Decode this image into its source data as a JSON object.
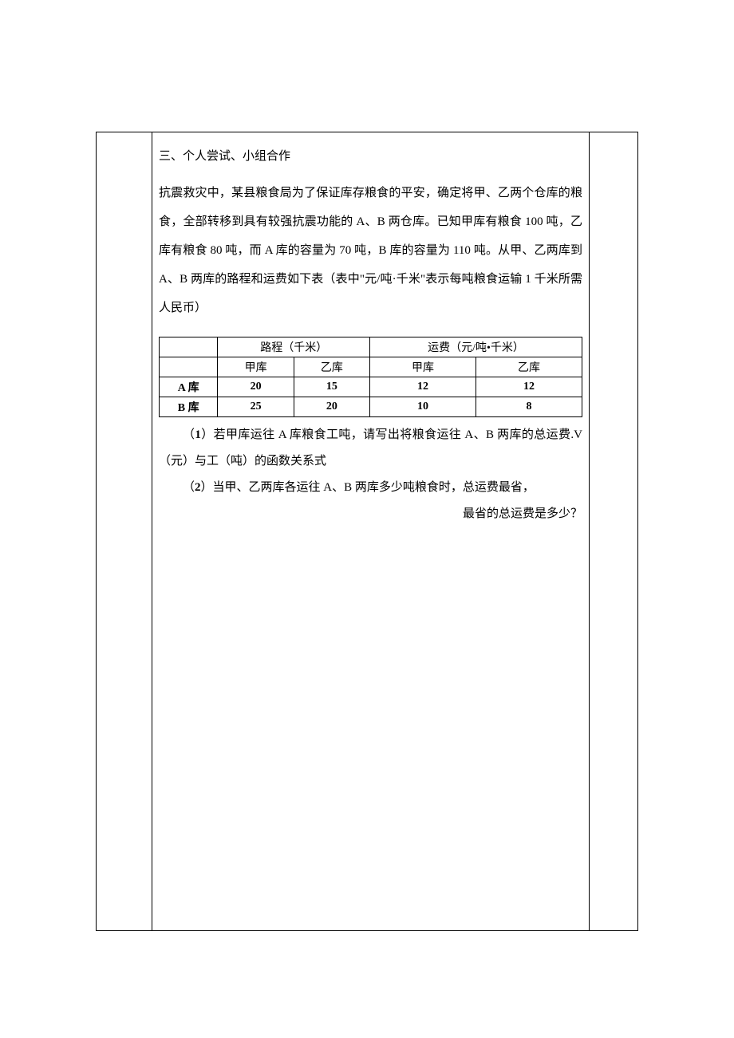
{
  "section_title": "三、个人尝试、小组合作",
  "paragraph": "抗震救灾中，某县粮食局为了保证库存粮食的平安，确定将甲、乙两个仓库的粮食，全部转移到具有较强抗震功能的 A、B 两仓库。已知甲库有粮食 100 吨，乙库有粮食 80 吨，而 A 库的容量为 70 吨，B 库的容量为 110 吨。从甲、乙两库到 A、B 两库的路程和运费如下表（表中\"元/吨·千米\"表示每吨粮食运输 1 千米所需人民币）",
  "table": {
    "header_group1": "路程（千米）",
    "header_group2": "运费（元/吨•千米）",
    "sub_h1": "甲库",
    "sub_h2": "乙库",
    "sub_h3": "甲库",
    "sub_h4": "乙库",
    "rows": [
      {
        "label": "A 库",
        "c1": "20",
        "c2": "15",
        "c3": "12",
        "c4": "12"
      },
      {
        "label": "B 库",
        "c1": "25",
        "c2": "20",
        "c3": "10",
        "c4": "8"
      }
    ]
  },
  "q1_prefix": "（",
  "q1_num": "1",
  "q1_text": "）若甲库运往 A 库粮食工吨，请写出将粮食运往 A、B 两库的总运费.V（元）与工（吨）的函数关系式",
  "q2_prefix": "（",
  "q2_num": "2",
  "q2_text": "）当甲、乙两库各运往 A、B 两库多少吨粮食时，总运费最省，",
  "q2_tail": "最省的总运费是多少？",
  "style": {
    "body_fontsize": 15,
    "table_fontsize": 14,
    "line_height": 2.4,
    "border_color": "#000000",
    "background": "#ffffff"
  }
}
